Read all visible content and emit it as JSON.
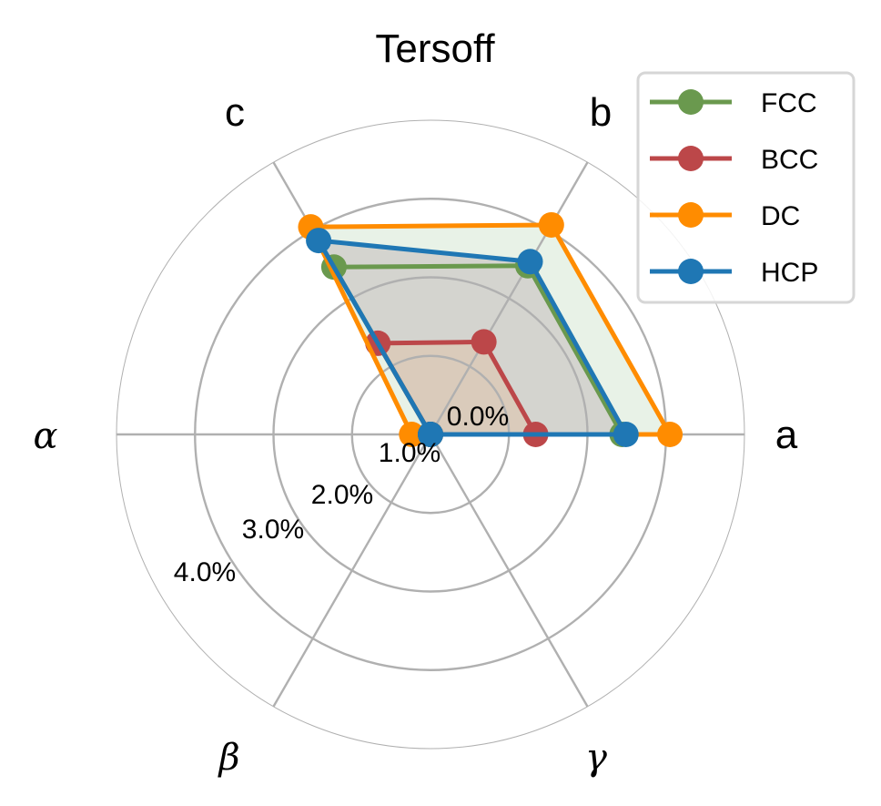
{
  "chart_data": {
    "type": "radar",
    "title": "Tersoff",
    "categories": [
      "a",
      "b",
      "c",
      "α",
      "β",
      "γ"
    ],
    "radial_ticks": [
      0.0,
      1.0,
      2.0,
      3.0,
      4.0
    ],
    "radial_tick_labels": [
      "0.0%",
      "1.0%",
      "2.0%",
      "3.0%",
      "4.0%"
    ],
    "rlim": [
      0,
      4.0
    ],
    "grid": true,
    "legend_position": "upper right",
    "series": [
      {
        "name": "FCC",
        "color": "#6a994e",
        "values": [
          2.44,
          2.48,
          2.46,
          0.0,
          0.0,
          0.0
        ]
      },
      {
        "name": "BCC",
        "color": "#bc4749",
        "values": [
          1.34,
          1.36,
          1.34,
          0.0,
          0.0,
          0.0
        ]
      },
      {
        "name": "DC",
        "color": "#ff8c00",
        "values": [
          3.05,
          3.08,
          3.05,
          0.24,
          0.0,
          0.0
        ]
      },
      {
        "name": "HCP",
        "color": "#1f77b4",
        "values": [
          2.49,
          2.54,
          2.85,
          0.0,
          0.0,
          0.0
        ]
      }
    ],
    "fills": {
      "outer_region": "#e8f2e7",
      "middle_region": "#d4d4cf",
      "inner_region": "#dacbbb"
    }
  }
}
